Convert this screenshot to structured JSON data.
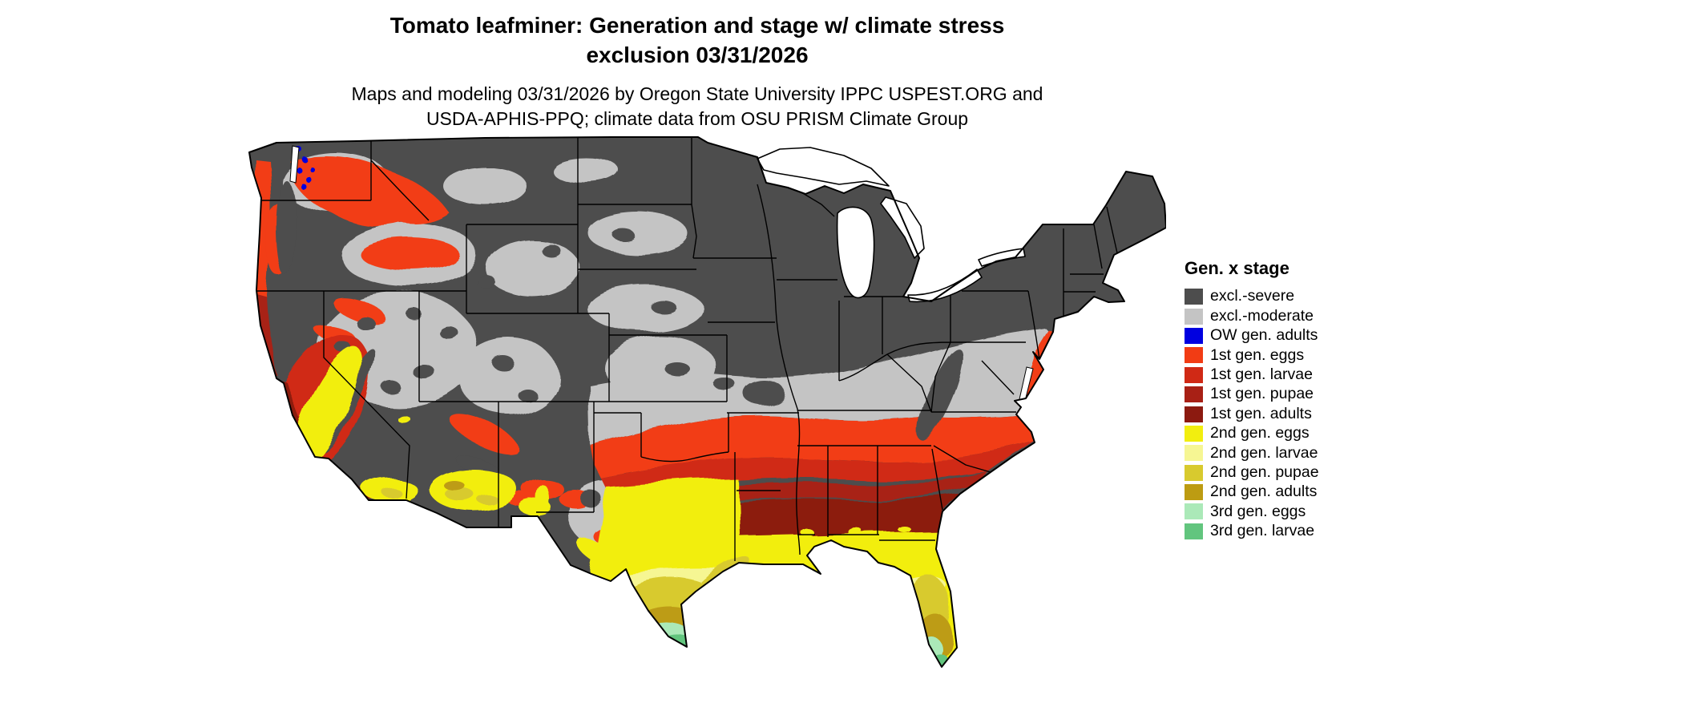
{
  "title": {
    "line1": "Tomato leafminer: Generation and stage w/ climate stress",
    "line2": "exclusion 03/31/2026"
  },
  "subtitle": {
    "line1": "Maps and modeling 03/31/2026 by Oregon State University IPPC USPEST.ORG and",
    "line2": "USDA-APHIS-PPQ; climate data from OSU PRISM Climate Group"
  },
  "legend": {
    "title": "Gen. x stage",
    "items": [
      {
        "label": "excl.-severe",
        "color": "#4d4d4d"
      },
      {
        "label": "excl.-moderate",
        "color": "#c4c4c4"
      },
      {
        "label": "OW gen. adults",
        "color": "#0000e0"
      },
      {
        "label": "1st gen. eggs",
        "color": "#f23c14"
      },
      {
        "label": "1st gen. larvae",
        "color": "#d02915"
      },
      {
        "label": "1st gen. pupae",
        "color": "#a82015"
      },
      {
        "label": "1st gen. adults",
        "color": "#8c1a10"
      },
      {
        "label": "2nd gen. eggs",
        "color": "#f2ee0f"
      },
      {
        "label": "2nd gen. larvae",
        "color": "#f6f693"
      },
      {
        "label": "2nd gen. pupae",
        "color": "#d8ca2e"
      },
      {
        "label": "2nd gen. adults",
        "color": "#bd9c12"
      },
      {
        "label": "3rd gen. eggs",
        "color": "#abe9b8"
      },
      {
        "label": "3rd gen. larvae",
        "color": "#62c57e"
      }
    ]
  },
  "map": {
    "region": "contiguous United States",
    "water_color": "#ffffff",
    "border_color": "#000000"
  }
}
